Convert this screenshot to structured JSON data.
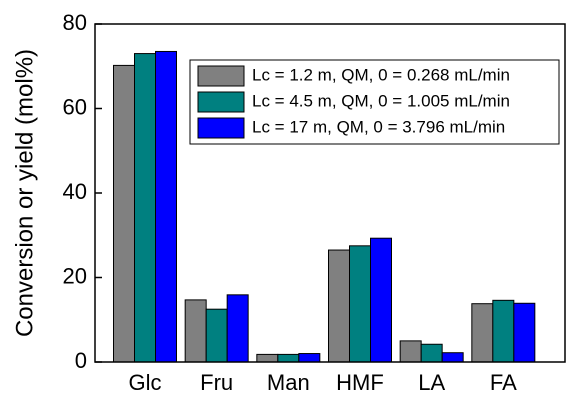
{
  "chart_data": {
    "type": "bar",
    "y_label": "Conversion or yield (mol%)",
    "categories": [
      "Glc",
      "Fru",
      "Man",
      "HMF",
      "LA",
      "FA"
    ],
    "series": [
      {
        "name": "Lc = 1.2 m,  QM, 0 = 0.268 mL/min",
        "color": "#808080",
        "values": [
          70.2,
          14.7,
          1.8,
          26.5,
          5.0,
          13.8
        ]
      },
      {
        "name": "Lc = 4.5 m,  QM, 0 = 1.005 mL/min",
        "color": "#008080",
        "values": [
          73.0,
          12.5,
          1.8,
          27.5,
          4.2,
          14.6
        ]
      },
      {
        "name": "Lc = 17 m,  QM, 0 = 3.796 mL/min",
        "color": "#0000ff",
        "values": [
          73.5,
          15.9,
          2.0,
          29.3,
          2.2,
          13.9
        ]
      }
    ],
    "ylim": [
      0,
      80
    ],
    "yticks": [
      0,
      20,
      40,
      60,
      80
    ],
    "legend": "upper right"
  }
}
